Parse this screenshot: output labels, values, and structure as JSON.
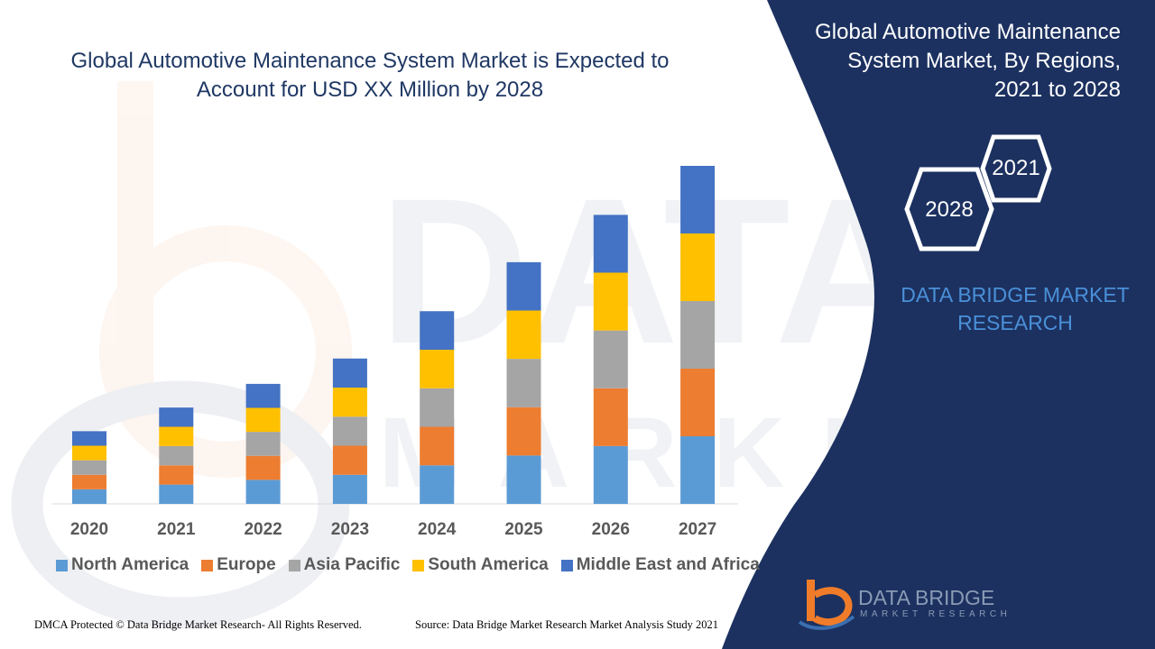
{
  "header": {
    "title": "Global Automotive Maintenance System Market is Expected to Account for USD XX Million by 2028"
  },
  "side_panel": {
    "title": "Global Automotive Maintenance System Market, By Regions, 2021 to 2028",
    "hex_start": "2021",
    "hex_end": "2028",
    "brand_text": "DATA BRIDGE MARKET RESEARCH",
    "logo_name": "DATA BRIDGE",
    "logo_sub": "MARKET RESEARCH",
    "panel_color": "#1c3160",
    "accent_color": "#f07c2a"
  },
  "footer": {
    "left": "DMCA Protected © Data Bridge Market Research- All Rights Reserved.",
    "right": "Source: Data Bridge Market Research Market Analysis Study 2021"
  },
  "chart_data": {
    "type": "bar",
    "stacked": true,
    "title": "",
    "xlabel": "",
    "ylabel": "",
    "ylim": [
      0,
      100
    ],
    "grid": false,
    "legend_position": "bottom",
    "categories": [
      "2020",
      "2021",
      "2022",
      "2023",
      "2024",
      "2025",
      "2026",
      "2027"
    ],
    "series": [
      {
        "name": "North America",
        "color": "#5b9bd5",
        "values": [
          4.3,
          5.7,
          7.1,
          8.6,
          11.4,
          14.3,
          17.1,
          20
        ]
      },
      {
        "name": "Europe",
        "color": "#ed7d31",
        "values": [
          4.3,
          5.7,
          7.1,
          8.6,
          11.4,
          14.3,
          17.1,
          20
        ]
      },
      {
        "name": "Asia Pacific",
        "color": "#a5a5a5",
        "values": [
          4.3,
          5.7,
          7.1,
          8.6,
          11.4,
          14.3,
          17.1,
          20
        ]
      },
      {
        "name": "South America",
        "color": "#ffc000",
        "values": [
          4.3,
          5.7,
          7.1,
          8.6,
          11.4,
          14.3,
          17.1,
          20
        ]
      },
      {
        "name": "Middle East and Africa",
        "color": "#4472c4",
        "values": [
          4.3,
          5.7,
          7.1,
          8.6,
          11.4,
          14.3,
          17.1,
          20
        ]
      }
    ]
  }
}
